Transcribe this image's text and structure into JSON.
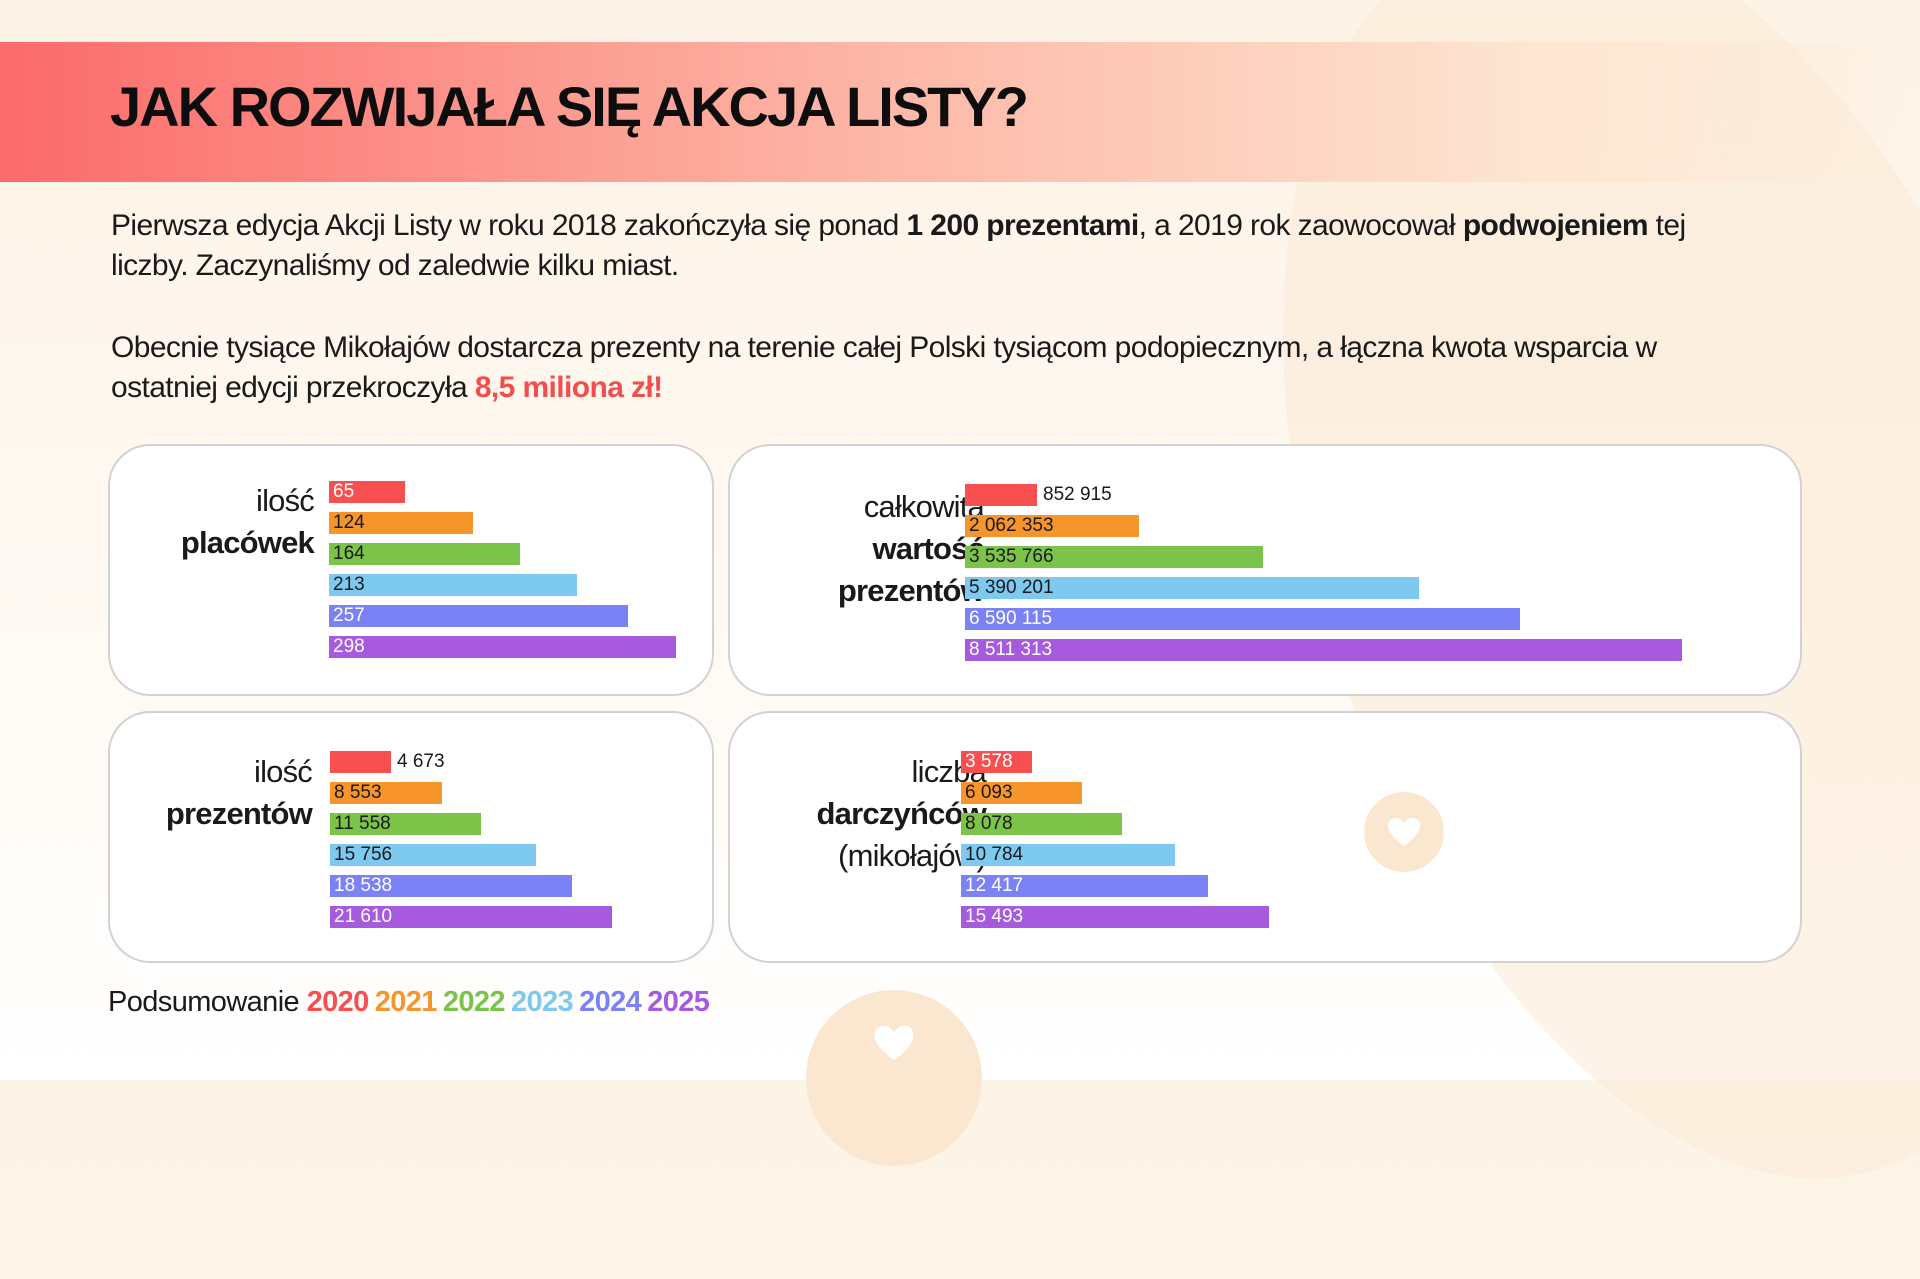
{
  "title": "JAK ROZWIJAŁA SIĘ AKCJA LISTY?",
  "intro": {
    "p1": [
      {
        "text": "Pierwsza edycja Akcji Listy w roku 2018 zakończyła się ponad ",
        "style": "normal"
      },
      {
        "text": "1 200 prezentami",
        "style": "bold"
      },
      {
        "text": ", a 2019 rok zaowocował ",
        "style": "normal"
      },
      {
        "text": "podwojeniem",
        "style": "bold"
      },
      {
        "text": " tej liczby. Zaczynaliśmy od zaledwie kilku miast.",
        "style": "normal"
      }
    ],
    "p2": [
      {
        "text": "Obecnie tysiące Mikołajów dostarcza prezenty na terenie całej Polski tysiącom podopiecznym, a łączna kwota wsparcia w ostatniej edycji przekroczyła ",
        "style": "normal"
      },
      {
        "text": "8,5 miliona zł!",
        "style": "accent"
      }
    ]
  },
  "colors": {
    "2020": "#f85050",
    "2021": "#f5952b",
    "2022": "#7cc34a",
    "2023": "#7dc9ef",
    "2024": "#7b82f5",
    "2025": "#a65ade"
  },
  "chart_data": [
    {
      "type": "bar",
      "label_light": "ilość",
      "label_bold": "placówek",
      "label_extra": "",
      "categories": [
        "2020",
        "2021",
        "2022",
        "2023",
        "2024",
        "2025"
      ],
      "values": [
        65,
        124,
        164,
        213,
        257,
        298
      ],
      "display": [
        "65",
        "124",
        "164",
        "213",
        "257",
        "298"
      ]
    },
    {
      "type": "bar",
      "label_light": "całkowita",
      "label_bold": "wartość prezentów",
      "label_extra": "",
      "categories": [
        "2020",
        "2021",
        "2022",
        "2023",
        "2024",
        "2025"
      ],
      "values": [
        852915,
        2062353,
        3535766,
        5390201,
        6590115,
        8511313
      ],
      "display": [
        "852 915",
        "2 062 353",
        "3 535 766",
        "5 390 201",
        "6 590 115",
        "8 511 313"
      ]
    },
    {
      "type": "bar",
      "label_light": "ilość",
      "label_bold": "prezentów",
      "label_extra": "",
      "categories": [
        "2020",
        "2021",
        "2022",
        "2023",
        "2024",
        "2025"
      ],
      "values": [
        4673,
        8553,
        11558,
        15756,
        18538,
        21610
      ],
      "display": [
        "4 673",
        "8 553",
        "11 558",
        "15 756",
        "18 538",
        "21 610"
      ]
    },
    {
      "type": "bar",
      "label_light": "liczba",
      "label_bold": "darczyńców",
      "label_extra": "(mikołajów)",
      "categories": [
        "2020",
        "2021",
        "2022",
        "2023",
        "2024",
        "2025"
      ],
      "values": [
        3578,
        6093,
        8078,
        10784,
        12417,
        15493
      ],
      "display": [
        "3 578",
        "6 093",
        "8 078",
        "10 784",
        "12 417",
        "15 493"
      ]
    }
  ],
  "legend": {
    "prefix": "Podsumowanie",
    "years": [
      "2020",
      "2021",
      "2022",
      "2023",
      "2024",
      "2025"
    ]
  },
  "decor": {
    "heart_icon": "heart-icon"
  }
}
